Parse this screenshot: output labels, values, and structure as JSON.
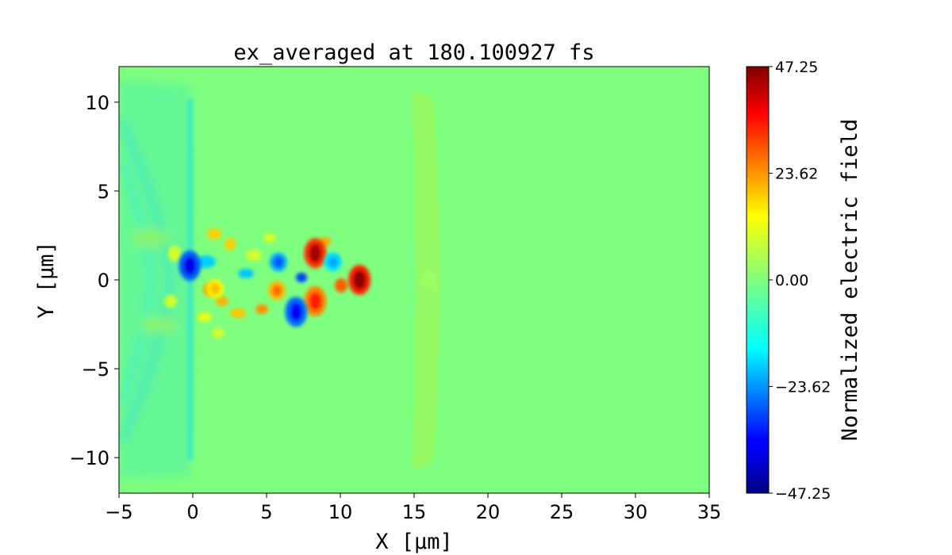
{
  "chart_data": {
    "type": "heatmap",
    "title": "ex_averaged at 180.100927 fs",
    "xlabel": "X [μm]",
    "ylabel": "Y [μm]",
    "xlim": [
      -5,
      35
    ],
    "ylim": [
      -12,
      12
    ],
    "x_ticks": [
      -5,
      0,
      5,
      10,
      15,
      20,
      25,
      30,
      35
    ],
    "y_ticks": [
      -10,
      -5,
      0,
      5,
      10
    ],
    "x_tick_labels": [
      "−5",
      "0",
      "5",
      "10",
      "15",
      "20",
      "25",
      "30",
      "35"
    ],
    "y_tick_labels": [
      "−10",
      "−5",
      "0",
      "5",
      "10"
    ],
    "colormap": "jet",
    "colorbar": {
      "label": "Normalized electric field",
      "min": -47.25,
      "max": 47.25,
      "ticks": [
        47.25,
        23.62,
        0.0,
        -23.62,
        -47.25
      ],
      "tick_labels": [
        "47.25",
        "23.62",
        "0.00",
        "−23.62",
        "−47.25"
      ]
    },
    "features": [
      {
        "x": 8.3,
        "y": 1.5,
        "value": 44
      },
      {
        "x": 11.3,
        "y": 0.0,
        "value": 46
      },
      {
        "x": 8.3,
        "y": -1.2,
        "value": 33
      },
      {
        "x": 5.7,
        "y": -0.6,
        "value": 26
      },
      {
        "x": 7.0,
        "y": -1.8,
        "value": -36
      },
      {
        "x": -0.2,
        "y": 0.8,
        "value": -38
      },
      {
        "x": 5.8,
        "y": 1.0,
        "value": -28
      },
      {
        "x": 9.5,
        "y": 1.0,
        "value": -20
      },
      {
        "x": 1.5,
        "y": -0.5,
        "value": 18
      },
      {
        "x": 16.0,
        "y": 0.0,
        "value": 3
      }
    ]
  }
}
